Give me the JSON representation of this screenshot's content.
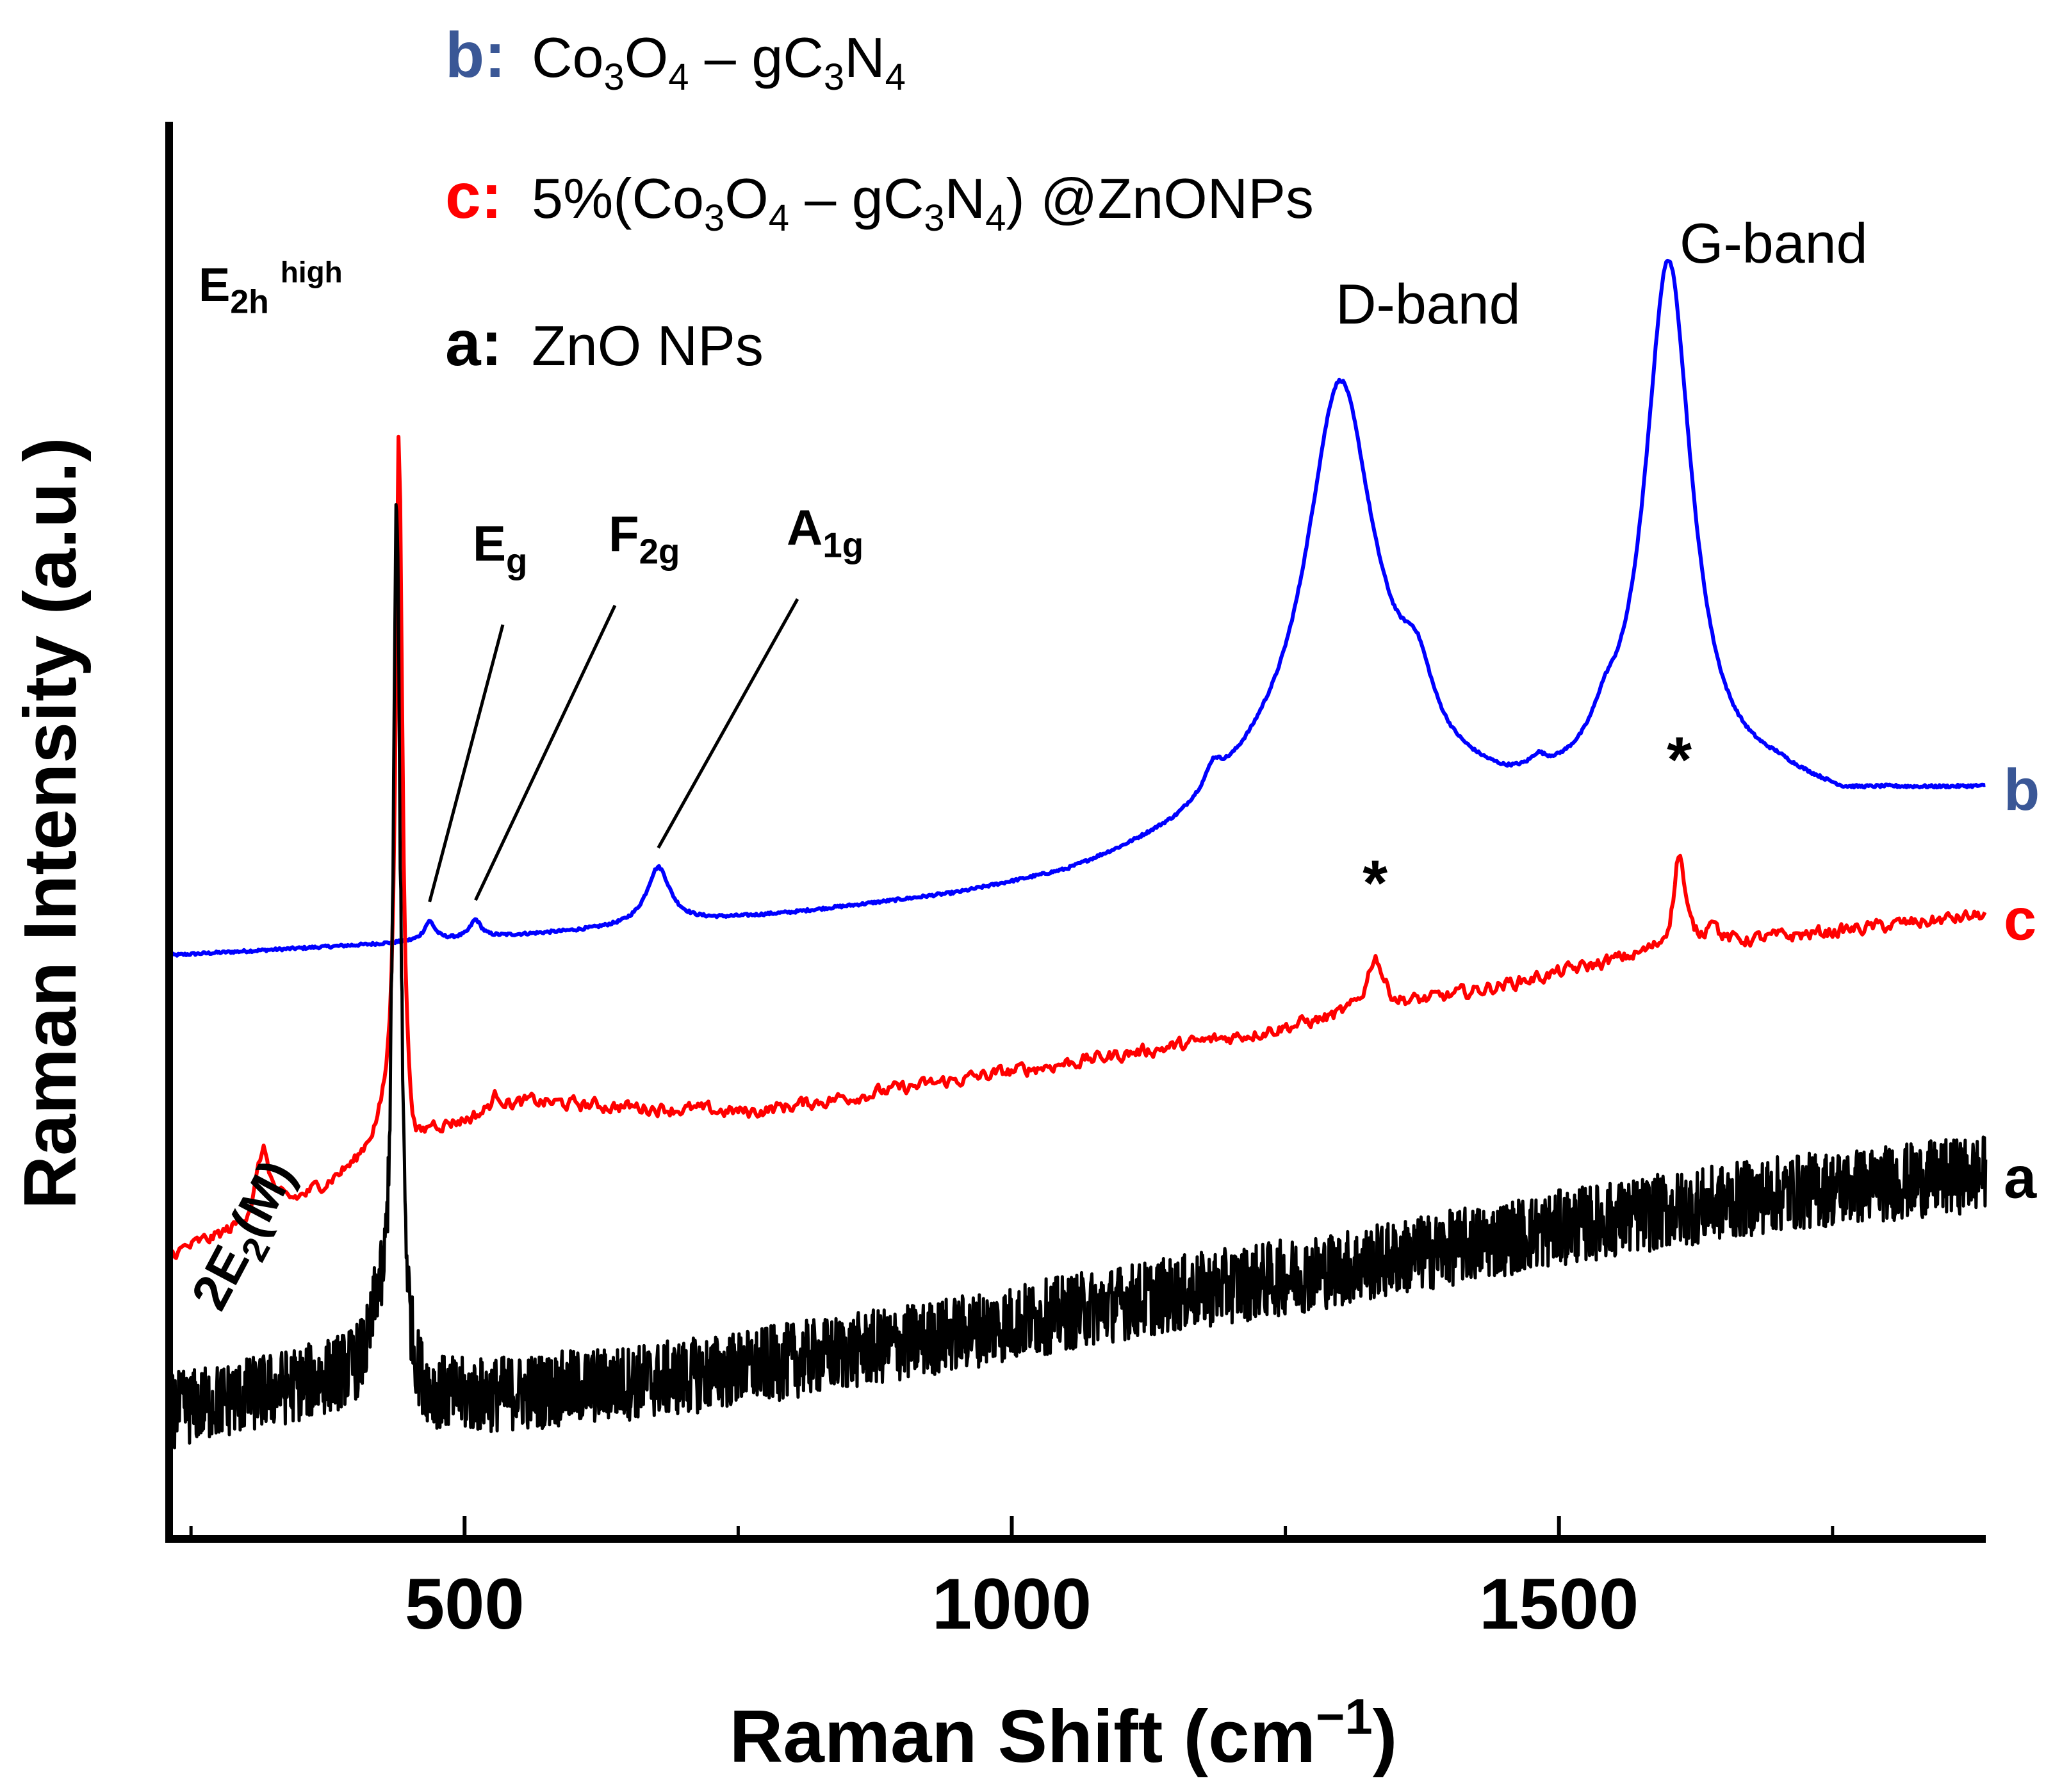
{
  "chart_data": {
    "type": "line",
    "xlabel": "Raman Shift (cm",
    "xlabel_sup": "−1",
    "xlabel_close": ")",
    "ylabel": "Raman Intensity (a.u.)",
    "xlim": [
      230,
      1890
    ],
    "ylim": [
      0,
      100
    ],
    "y_ticks_shown": false,
    "xticks": [
      500,
      1000,
      1500
    ],
    "xtick_labels": [
      "500",
      "1000",
      "1500"
    ],
    "minor_xticks": [
      250,
      750,
      1250,
      1750
    ],
    "legend": [
      {
        "key": "b:",
        "formula": [
          "Co",
          "3",
          "O",
          "4",
          " – gC",
          "3",
          "N",
          "4"
        ],
        "color": "#3a5796"
      },
      {
        "key": "c:",
        "formula": [
          "5%(Co",
          "3",
          "O",
          "4",
          " – gC",
          "3",
          "N",
          "4",
          ") @ZnONPs"
        ],
        "color": "#ff0000"
      },
      {
        "key": "a:",
        "formula": [
          "ZnO NPs"
        ],
        "color": "#000000"
      }
    ],
    "series": [
      {
        "name": "b",
        "end_label": "b",
        "color": "#0000ff",
        "label_color": "#3a5796",
        "baseline": [
          [
            230,
            42.5
          ],
          [
            420,
            43.3
          ],
          [
            600,
            44.2
          ],
          [
            800,
            45.5
          ],
          [
            950,
            46.8
          ],
          [
            1050,
            48.2
          ],
          [
            1100,
            49.5
          ],
          [
            1150,
            51
          ],
          [
            1190,
            53
          ],
          [
            1230,
            54.5
          ],
          [
            1270,
            55.2
          ],
          [
            1340,
            55.8
          ],
          [
            1400,
            54.3
          ],
          [
            1450,
            53.5
          ],
          [
            1500,
            53.6
          ],
          [
            1560,
            54
          ],
          [
            1650,
            54.3
          ],
          [
            1700,
            54.8
          ],
          [
            1760,
            53.8
          ],
          [
            1800,
            54.2
          ],
          [
            1890,
            54.6
          ]
        ],
        "peaks": [
          {
            "center": 468,
            "height": 1.4,
            "width": 6
          },
          {
            "center": 510,
            "height": 1.3,
            "width": 6
          },
          {
            "center": 677,
            "height": 4.2,
            "width": 13
          },
          {
            "center": 1184,
            "height": 1.5,
            "width": 8
          },
          {
            "center": 1300,
            "height": 28.8,
            "width": 37
          },
          {
            "center": 1370,
            "height": 4.5,
            "width": 18
          },
          {
            "center": 1481,
            "height": 0.8,
            "width": 8
          },
          {
            "center": 1542,
            "height": 2,
            "width": 14
          },
          {
            "center": 1600,
            "height": 39,
            "width": 26
          }
        ],
        "noise": 0.1
      },
      {
        "name": "c",
        "end_label": "c",
        "color": "#ff0000",
        "label_color": "#ff0000",
        "baseline": [
          [
            230,
            20.5
          ],
          [
            300,
            22.5
          ],
          [
            350,
            24.5
          ],
          [
            400,
            27
          ],
          [
            430,
            30
          ],
          [
            455,
            27
          ],
          [
            470,
            29.5
          ],
          [
            560,
            31.7
          ],
          [
            760,
            31
          ],
          [
            1000,
            34
          ],
          [
            1200,
            36.5
          ],
          [
            1400,
            39.5
          ],
          [
            1600,
            43
          ],
          [
            1890,
            45.5
          ]
        ],
        "peaks": [
          {
            "center": 316,
            "height": 5,
            "width": 8
          },
          {
            "center": 440,
            "height": 53,
            "width": 3.6
          },
          {
            "center": 530,
            "height": 1.2,
            "width": 8
          },
          {
            "center": 1332,
            "height": 4,
            "width": 9
          },
          {
            "center": 1610,
            "height": 7,
            "width": 6
          },
          {
            "center": 1640,
            "height": 2,
            "width": 5
          }
        ],
        "noise": 0.9
      },
      {
        "name": "a",
        "end_label": "a",
        "color": "#000000",
        "label_color": "#000000",
        "baseline": [
          [
            230,
            9
          ],
          [
            420,
            12
          ],
          [
            450,
            9.5
          ],
          [
            700,
            11.5
          ],
          [
            900,
            14
          ],
          [
            1100,
            17
          ],
          [
            1300,
            19.5
          ],
          [
            1500,
            22.5
          ],
          [
            1700,
            25
          ],
          [
            1890,
            26.5
          ]
        ],
        "peaks": [
          {
            "center": 420,
            "height": 3,
            "width": 5
          },
          {
            "center": 438,
            "height": 64,
            "width": 4.2
          }
        ],
        "noise": 2.8
      }
    ],
    "annotations": [
      {
        "text": "E",
        "sub": "2h",
        "sup": "high",
        "anchor": "E2h-peak"
      },
      {
        "text": "E",
        "sub": "g",
        "target": 468
      },
      {
        "text": "F",
        "sub": "2g",
        "target": 510
      },
      {
        "text": "A",
        "sub": "1g",
        "target": 677
      },
      {
        "text": "D-band",
        "target": 1300
      },
      {
        "text": "G-band",
        "target": 1600
      },
      {
        "text": "*",
        "target": 1332
      },
      {
        "text": "*",
        "target": 1610
      },
      {
        "text": "2E",
        "sub": "2",
        "suffix": "(M)",
        "rotated": true
      }
    ]
  }
}
